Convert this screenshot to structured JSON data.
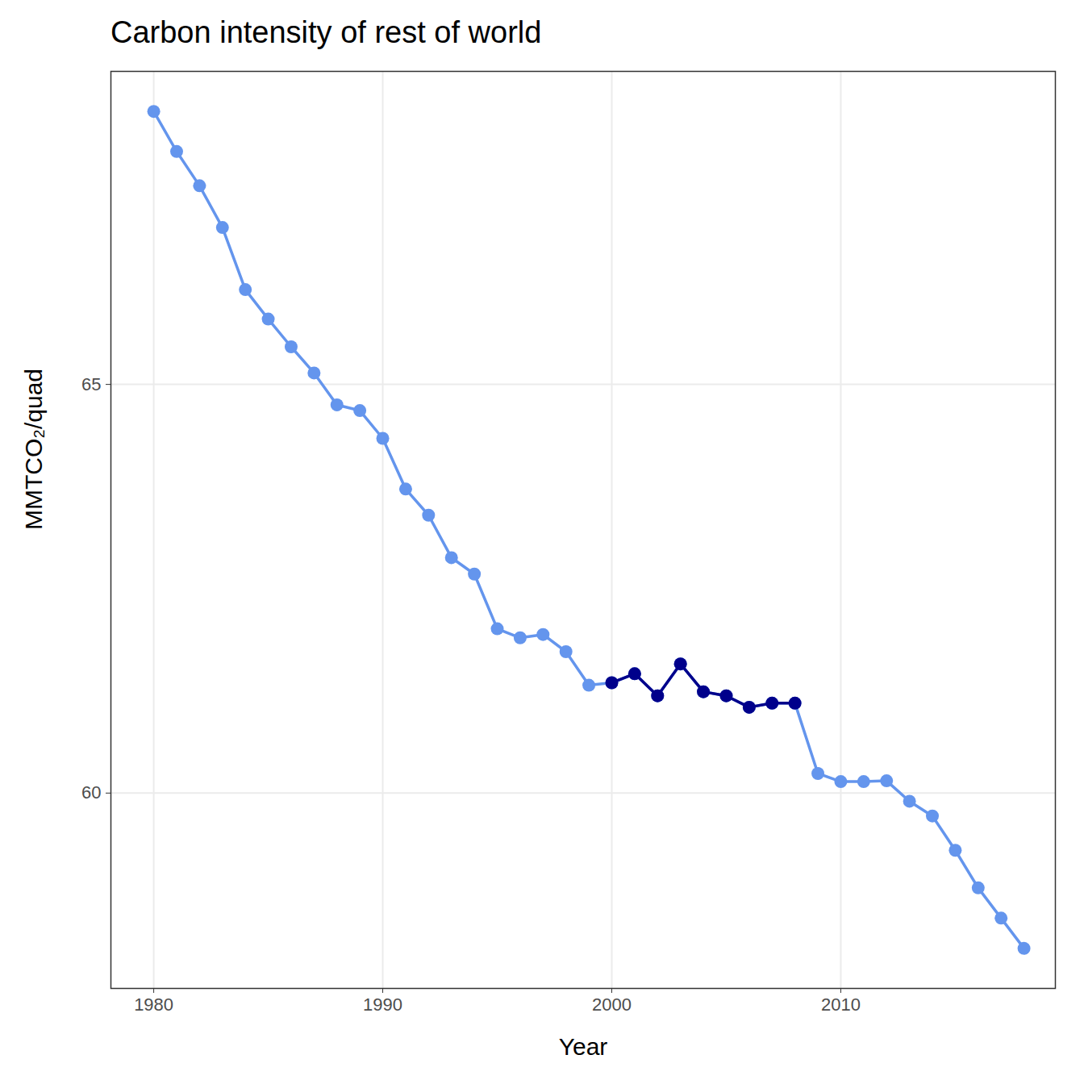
{
  "chart_data": {
    "type": "line",
    "title": "Carbon intensity of rest of world",
    "x_label": "Year",
    "y_label": "MMTCO₂/quad",
    "x": [
      1980,
      1981,
      1982,
      1983,
      1984,
      1985,
      1986,
      1987,
      1988,
      1989,
      1990,
      1991,
      1992,
      1993,
      1994,
      1995,
      1996,
      1997,
      1998,
      1999,
      2000,
      2001,
      2002,
      2003,
      2004,
      2005,
      2006,
      2007,
      2008,
      2009,
      2010,
      2011,
      2012,
      2013,
      2014,
      2015,
      2016,
      2017,
      2018
    ],
    "series": [
      {
        "color": "#6495ED",
        "marker": "circle",
        "line_style": "solid",
        "values": [
          68.34,
          67.85,
          67.43,
          66.92,
          66.16,
          65.8,
          65.46,
          65.14,
          64.75,
          64.68,
          64.34,
          63.72,
          63.4,
          62.88,
          62.68,
          62.01,
          61.9,
          61.94,
          61.73,
          61.32,
          61.35,
          61.46,
          61.19,
          61.58,
          61.24,
          61.19,
          61.05,
          61.1,
          61.1,
          60.24,
          60.14,
          60.14,
          60.15,
          59.9,
          59.72,
          59.3,
          58.84,
          58.47,
          58.1
        ]
      },
      {
        "color": "#00008B",
        "marker": "circle",
        "line_style": "solid",
        "values": [
          null,
          null,
          null,
          null,
          null,
          null,
          null,
          null,
          null,
          null,
          null,
          null,
          null,
          null,
          null,
          null,
          null,
          null,
          null,
          null,
          61.35,
          61.46,
          61.19,
          61.58,
          61.24,
          61.19,
          61.05,
          61.1,
          61.1,
          null,
          null,
          null,
          null,
          null,
          null,
          null,
          null,
          null,
          null
        ]
      }
    ],
    "xlim": [
      1978.13,
      2019.37
    ],
    "xticks": [
      1980,
      1990,
      2000,
      2010
    ],
    "ylim": [
      57.61,
      68.83
    ],
    "yticks": [
      60,
      65
    ],
    "grid": true
  }
}
